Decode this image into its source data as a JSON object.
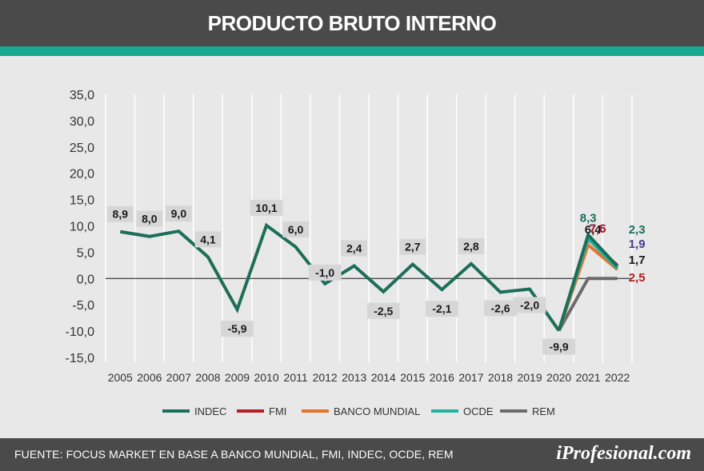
{
  "header": {
    "title": "PRODUCTO BRUTO INTERNO"
  },
  "footer": {
    "source": "FUENTE: FOCUS MARKET EN BASE A BANCO MUNDIAL, FMI, INDEC, OCDE, REM",
    "brand": "iProfesional.com"
  },
  "chart_data": {
    "type": "line",
    "x": [
      "2005",
      "2006",
      "2007",
      "2008",
      "2009",
      "2010",
      "2011",
      "2012",
      "2013",
      "2014",
      "2015",
      "2016",
      "2017",
      "2018",
      "2019",
      "2020",
      "2021",
      "2022"
    ],
    "ylim": [
      -15,
      35
    ],
    "yticks": [
      "35,0",
      "30,0",
      "25,0",
      "20,0",
      "15,0",
      "10,0",
      "5,0",
      "0,0",
      "-5,0",
      "-10,0",
      "-15,0"
    ],
    "ytick_values": [
      35,
      30,
      25,
      20,
      15,
      10,
      5,
      0,
      -5,
      -10,
      -15
    ],
    "grid": "vertical",
    "legend_position": "bottom",
    "series": [
      {
        "name": "INDEC",
        "color": "#1c6e58",
        "values": [
          8.9,
          8.0,
          9.0,
          4.1,
          -5.9,
          10.1,
          6.0,
          -1.0,
          2.4,
          -2.5,
          2.7,
          -2.1,
          2.8,
          -2.6,
          -2.0,
          -9.9,
          null,
          null
        ],
        "labels": [
          "8,9",
          "8,0",
          "9,0",
          "4,1",
          "-5,9",
          "10,1",
          "6,0",
          "-1,0",
          "2,4",
          "-2,5",
          "2,7",
          "-2,1",
          "2,8",
          "-2,6",
          "-2,0",
          "-9,9",
          null,
          null
        ]
      },
      {
        "name": "FMI",
        "color": "#b21f24",
        "values": [
          null,
          null,
          null,
          null,
          null,
          null,
          null,
          null,
          null,
          null,
          null,
          null,
          null,
          null,
          null,
          -9.9,
          7.5,
          2.5
        ],
        "labels": [
          null,
          null,
          null,
          null,
          null,
          null,
          null,
          null,
          null,
          null,
          null,
          null,
          null,
          null,
          null,
          null,
          "7,5",
          "2,5"
        ]
      },
      {
        "name": "BANCO MUNDIAL",
        "color": "#e5742c",
        "values": [
          null,
          null,
          null,
          null,
          null,
          null,
          null,
          null,
          null,
          null,
          null,
          null,
          null,
          null,
          null,
          -9.9,
          6.4,
          1.7
        ],
        "labels": [
          null,
          null,
          null,
          null,
          null,
          null,
          null,
          null,
          null,
          null,
          null,
          null,
          null,
          null,
          null,
          null,
          "6,4",
          "1,7"
        ]
      },
      {
        "name": "OCDE",
        "color": "#25b3a0",
        "values": [
          null,
          null,
          null,
          null,
          null,
          null,
          null,
          null,
          null,
          null,
          null,
          null,
          null,
          null,
          null,
          -9.9,
          7.6,
          1.9
        ],
        "labels": [
          null,
          null,
          null,
          null,
          null,
          null,
          null,
          null,
          null,
          null,
          null,
          null,
          null,
          null,
          null,
          null,
          "7,6",
          "1,9"
        ]
      },
      {
        "name": "REM",
        "color": "#6b6b6b",
        "values": [
          null,
          null,
          null,
          null,
          null,
          null,
          null,
          null,
          null,
          null,
          null,
          null,
          null,
          null,
          null,
          -9.9,
          0,
          0
        ],
        "labels": [
          null,
          null,
          null,
          null,
          null,
          null,
          null,
          null,
          null,
          null,
          null,
          null,
          null,
          null,
          null,
          null,
          null,
          null
        ]
      },
      {
        "name": "INDEC",
        "color": "#1c6e58",
        "values": [
          null,
          null,
          null,
          null,
          null,
          null,
          null,
          null,
          null,
          null,
          null,
          null,
          null,
          null,
          null,
          -9.9,
          8.3,
          2.3
        ],
        "labels": [
          null,
          null,
          null,
          null,
          null,
          null,
          null,
          null,
          null,
          null,
          null,
          null,
          null,
          null,
          null,
          null,
          "8,3",
          "2,3"
        ]
      }
    ]
  }
}
